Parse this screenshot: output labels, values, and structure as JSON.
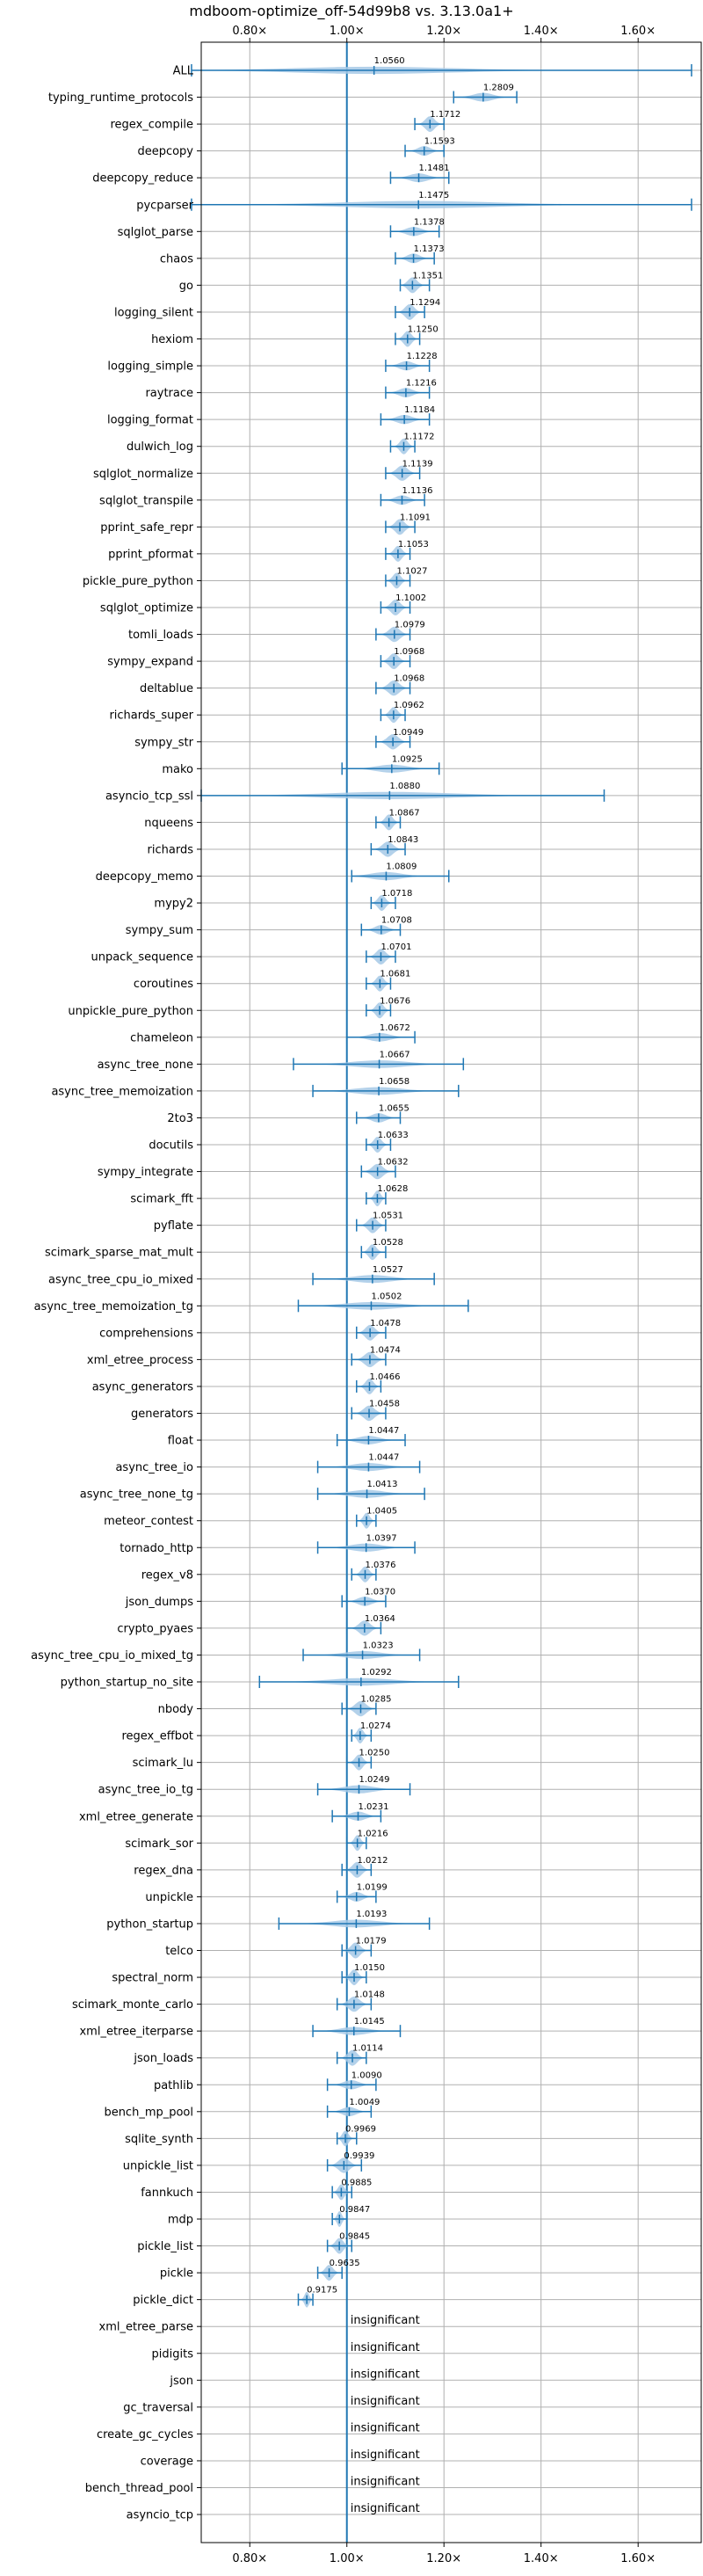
{
  "chart_data": {
    "type": "violin",
    "title": "mdboom-optimize_off-54d99b8 vs. 3.13.0a1+",
    "xlim": [
      0.7,
      1.73
    ],
    "xticks": [
      0.8,
      1.0,
      1.2,
      1.4,
      1.6
    ],
    "xtick_labels": [
      "0.80×",
      "1.00×",
      "1.20×",
      "1.40×",
      "1.60×"
    ],
    "grid": true,
    "reference_line": 1.0,
    "colors": {
      "violin": "#a6c9e6",
      "line": "#1f77b4"
    },
    "insignificant_label": "insignificant",
    "benchmarks": [
      {
        "name": "ALL",
        "value": 1.056,
        "label": "1.0560",
        "lo": 0.68,
        "hi": 1.71
      },
      {
        "name": "typing_runtime_protocols",
        "value": 1.2809,
        "label": "1.2809",
        "lo": 1.22,
        "hi": 1.35
      },
      {
        "name": "regex_compile",
        "value": 1.1712,
        "label": "1.1712",
        "lo": 1.14,
        "hi": 1.2
      },
      {
        "name": "deepcopy",
        "value": 1.1593,
        "label": "1.1593",
        "lo": 1.12,
        "hi": 1.2
      },
      {
        "name": "deepcopy_reduce",
        "value": 1.1481,
        "label": "1.1481",
        "lo": 1.09,
        "hi": 1.21
      },
      {
        "name": "pycparser",
        "value": 1.1475,
        "label": "1.1475",
        "lo": 0.68,
        "hi": 1.71
      },
      {
        "name": "sqlglot_parse",
        "value": 1.1378,
        "label": "1.1378",
        "lo": 1.09,
        "hi": 1.19
      },
      {
        "name": "chaos",
        "value": 1.1373,
        "label": "1.1373",
        "lo": 1.1,
        "hi": 1.18
      },
      {
        "name": "go",
        "value": 1.1351,
        "label": "1.1351",
        "lo": 1.11,
        "hi": 1.17
      },
      {
        "name": "logging_silent",
        "value": 1.1294,
        "label": "1.1294",
        "lo": 1.1,
        "hi": 1.16
      },
      {
        "name": "hexiom",
        "value": 1.125,
        "label": "1.1250",
        "lo": 1.1,
        "hi": 1.15
      },
      {
        "name": "logging_simple",
        "value": 1.1228,
        "label": "1.1228",
        "lo": 1.08,
        "hi": 1.17
      },
      {
        "name": "raytrace",
        "value": 1.1216,
        "label": "1.1216",
        "lo": 1.08,
        "hi": 1.17
      },
      {
        "name": "logging_format",
        "value": 1.1184,
        "label": "1.1184",
        "lo": 1.07,
        "hi": 1.17
      },
      {
        "name": "dulwich_log",
        "value": 1.1172,
        "label": "1.1172",
        "lo": 1.09,
        "hi": 1.14
      },
      {
        "name": "sqlglot_normalize",
        "value": 1.1139,
        "label": "1.1139",
        "lo": 1.08,
        "hi": 1.15
      },
      {
        "name": "sqlglot_transpile",
        "value": 1.1136,
        "label": "1.1136",
        "lo": 1.07,
        "hi": 1.16
      },
      {
        "name": "pprint_safe_repr",
        "value": 1.1091,
        "label": "1.1091",
        "lo": 1.08,
        "hi": 1.14
      },
      {
        "name": "pprint_pformat",
        "value": 1.1053,
        "label": "1.1053",
        "lo": 1.08,
        "hi": 1.13
      },
      {
        "name": "pickle_pure_python",
        "value": 1.1027,
        "label": "1.1027",
        "lo": 1.08,
        "hi": 1.13
      },
      {
        "name": "sqlglot_optimize",
        "value": 1.1002,
        "label": "1.1002",
        "lo": 1.07,
        "hi": 1.13
      },
      {
        "name": "tomli_loads",
        "value": 1.0979,
        "label": "1.0979",
        "lo": 1.06,
        "hi": 1.13
      },
      {
        "name": "sympy_expand",
        "value": 1.0968,
        "label": "1.0968",
        "lo": 1.07,
        "hi": 1.13
      },
      {
        "name": "deltablue",
        "value": 1.0968,
        "label": "1.0968",
        "lo": 1.06,
        "hi": 1.13
      },
      {
        "name": "richards_super",
        "value": 1.0962,
        "label": "1.0962",
        "lo": 1.07,
        "hi": 1.12
      },
      {
        "name": "sympy_str",
        "value": 1.0949,
        "label": "1.0949",
        "lo": 1.06,
        "hi": 1.13
      },
      {
        "name": "mako",
        "value": 1.0925,
        "label": "1.0925",
        "lo": 0.99,
        "hi": 1.19
      },
      {
        "name": "asyncio_tcp_ssl",
        "value": 1.088,
        "label": "1.0880",
        "lo": 0.7,
        "hi": 1.53
      },
      {
        "name": "nqueens",
        "value": 1.0867,
        "label": "1.0867",
        "lo": 1.06,
        "hi": 1.11
      },
      {
        "name": "richards",
        "value": 1.0843,
        "label": "1.0843",
        "lo": 1.05,
        "hi": 1.12
      },
      {
        "name": "deepcopy_memo",
        "value": 1.0809,
        "label": "1.0809",
        "lo": 1.01,
        "hi": 1.21
      },
      {
        "name": "mypy2",
        "value": 1.0718,
        "label": "1.0718",
        "lo": 1.05,
        "hi": 1.1
      },
      {
        "name": "sympy_sum",
        "value": 1.0708,
        "label": "1.0708",
        "lo": 1.03,
        "hi": 1.11
      },
      {
        "name": "unpack_sequence",
        "value": 1.0701,
        "label": "1.0701",
        "lo": 1.04,
        "hi": 1.1
      },
      {
        "name": "coroutines",
        "value": 1.0681,
        "label": "1.0681",
        "lo": 1.04,
        "hi": 1.09
      },
      {
        "name": "unpickle_pure_python",
        "value": 1.0676,
        "label": "1.0676",
        "lo": 1.04,
        "hi": 1.09
      },
      {
        "name": "chameleon",
        "value": 1.0672,
        "label": "1.0672",
        "lo": 1.0,
        "hi": 1.14
      },
      {
        "name": "async_tree_none",
        "value": 1.0667,
        "label": "1.0667",
        "lo": 0.89,
        "hi": 1.24
      },
      {
        "name": "async_tree_memoization",
        "value": 1.0658,
        "label": "1.0658",
        "lo": 0.93,
        "hi": 1.23
      },
      {
        "name": "2to3",
        "value": 1.0655,
        "label": "1.0655",
        "lo": 1.02,
        "hi": 1.11
      },
      {
        "name": "docutils",
        "value": 1.0633,
        "label": "1.0633",
        "lo": 1.04,
        "hi": 1.09
      },
      {
        "name": "sympy_integrate",
        "value": 1.0632,
        "label": "1.0632",
        "lo": 1.03,
        "hi": 1.1
      },
      {
        "name": "scimark_fft",
        "value": 1.0628,
        "label": "1.0628",
        "lo": 1.04,
        "hi": 1.08
      },
      {
        "name": "pyflate",
        "value": 1.0531,
        "label": "1.0531",
        "lo": 1.02,
        "hi": 1.08
      },
      {
        "name": "scimark_sparse_mat_mult",
        "value": 1.0528,
        "label": "1.0528",
        "lo": 1.03,
        "hi": 1.08
      },
      {
        "name": "async_tree_cpu_io_mixed",
        "value": 1.0527,
        "label": "1.0527",
        "lo": 0.93,
        "hi": 1.18
      },
      {
        "name": "async_tree_memoization_tg",
        "value": 1.0502,
        "label": "1.0502",
        "lo": 0.9,
        "hi": 1.25
      },
      {
        "name": "comprehensions",
        "value": 1.0478,
        "label": "1.0478",
        "lo": 1.02,
        "hi": 1.08
      },
      {
        "name": "xml_etree_process",
        "value": 1.0474,
        "label": "1.0474",
        "lo": 1.01,
        "hi": 1.08
      },
      {
        "name": "async_generators",
        "value": 1.0466,
        "label": "1.0466",
        "lo": 1.02,
        "hi": 1.07
      },
      {
        "name": "generators",
        "value": 1.0458,
        "label": "1.0458",
        "lo": 1.01,
        "hi": 1.08
      },
      {
        "name": "float",
        "value": 1.0447,
        "label": "1.0447",
        "lo": 0.98,
        "hi": 1.12
      },
      {
        "name": "async_tree_io",
        "value": 1.0447,
        "label": "1.0447",
        "lo": 0.94,
        "hi": 1.15
      },
      {
        "name": "async_tree_none_tg",
        "value": 1.0413,
        "label": "1.0413",
        "lo": 0.94,
        "hi": 1.16
      },
      {
        "name": "meteor_contest",
        "value": 1.0405,
        "label": "1.0405",
        "lo": 1.02,
        "hi": 1.06
      },
      {
        "name": "tornado_http",
        "value": 1.0397,
        "label": "1.0397",
        "lo": 0.94,
        "hi": 1.14
      },
      {
        "name": "regex_v8",
        "value": 1.0376,
        "label": "1.0376",
        "lo": 1.01,
        "hi": 1.06
      },
      {
        "name": "json_dumps",
        "value": 1.037,
        "label": "1.0370",
        "lo": 0.99,
        "hi": 1.08
      },
      {
        "name": "crypto_pyaes",
        "value": 1.0364,
        "label": "1.0364",
        "lo": 1.0,
        "hi": 1.07
      },
      {
        "name": "async_tree_cpu_io_mixed_tg",
        "value": 1.0323,
        "label": "1.0323",
        "lo": 0.91,
        "hi": 1.15
      },
      {
        "name": "python_startup_no_site",
        "value": 1.0292,
        "label": "1.0292",
        "lo": 0.82,
        "hi": 1.23
      },
      {
        "name": "nbody",
        "value": 1.0285,
        "label": "1.0285",
        "lo": 0.99,
        "hi": 1.06
      },
      {
        "name": "regex_effbot",
        "value": 1.0274,
        "label": "1.0274",
        "lo": 1.01,
        "hi": 1.05
      },
      {
        "name": "scimark_lu",
        "value": 1.025,
        "label": "1.0250",
        "lo": 1.0,
        "hi": 1.05
      },
      {
        "name": "async_tree_io_tg",
        "value": 1.0249,
        "label": "1.0249",
        "lo": 0.94,
        "hi": 1.13
      },
      {
        "name": "xml_etree_generate",
        "value": 1.0231,
        "label": "1.0231",
        "lo": 0.97,
        "hi": 1.07
      },
      {
        "name": "scimark_sor",
        "value": 1.0216,
        "label": "1.0216",
        "lo": 1.0,
        "hi": 1.04
      },
      {
        "name": "regex_dna",
        "value": 1.0212,
        "label": "1.0212",
        "lo": 0.99,
        "hi": 1.05
      },
      {
        "name": "unpickle",
        "value": 1.0199,
        "label": "1.0199",
        "lo": 0.98,
        "hi": 1.06
      },
      {
        "name": "python_startup",
        "value": 1.0193,
        "label": "1.0193",
        "lo": 0.86,
        "hi": 1.17
      },
      {
        "name": "telco",
        "value": 1.0179,
        "label": "1.0179",
        "lo": 0.99,
        "hi": 1.05
      },
      {
        "name": "spectral_norm",
        "value": 1.015,
        "label": "1.0150",
        "lo": 0.99,
        "hi": 1.04
      },
      {
        "name": "scimark_monte_carlo",
        "value": 1.0148,
        "label": "1.0148",
        "lo": 0.98,
        "hi": 1.05
      },
      {
        "name": "xml_etree_iterparse",
        "value": 1.0145,
        "label": "1.0145",
        "lo": 0.93,
        "hi": 1.11
      },
      {
        "name": "json_loads",
        "value": 1.0114,
        "label": "1.0114",
        "lo": 0.98,
        "hi": 1.04
      },
      {
        "name": "pathlib",
        "value": 1.009,
        "label": "1.0090",
        "lo": 0.96,
        "hi": 1.06
      },
      {
        "name": "bench_mp_pool",
        "value": 1.0049,
        "label": "1.0049",
        "lo": 0.96,
        "hi": 1.05
      },
      {
        "name": "sqlite_synth",
        "value": 0.9969,
        "label": "0.9969",
        "lo": 0.98,
        "hi": 1.02
      },
      {
        "name": "unpickle_list",
        "value": 0.9939,
        "label": "0.9939",
        "lo": 0.96,
        "hi": 1.03
      },
      {
        "name": "fannkuch",
        "value": 0.9885,
        "label": "0.9885",
        "lo": 0.97,
        "hi": 1.01
      },
      {
        "name": "mdp",
        "value": 0.9847,
        "label": "0.9847",
        "lo": 0.97,
        "hi": 1.0
      },
      {
        "name": "pickle_list",
        "value": 0.9845,
        "label": "0.9845",
        "lo": 0.96,
        "hi": 1.01
      },
      {
        "name": "pickle",
        "value": 0.9635,
        "label": "0.9635",
        "lo": 0.94,
        "hi": 0.99
      },
      {
        "name": "pickle_dict",
        "value": 0.9175,
        "label": "0.9175",
        "lo": 0.9,
        "hi": 0.93
      },
      {
        "name": "xml_etree_parse",
        "value": null,
        "label": "insignificant"
      },
      {
        "name": "pidigits",
        "value": null,
        "label": "insignificant"
      },
      {
        "name": "json",
        "value": null,
        "label": "insignificant"
      },
      {
        "name": "gc_traversal",
        "value": null,
        "label": "insignificant"
      },
      {
        "name": "create_gc_cycles",
        "value": null,
        "label": "insignificant"
      },
      {
        "name": "coverage",
        "value": null,
        "label": "insignificant"
      },
      {
        "name": "bench_thread_pool",
        "value": null,
        "label": "insignificant"
      },
      {
        "name": "asyncio_tcp",
        "value": null,
        "label": "insignificant"
      }
    ]
  }
}
